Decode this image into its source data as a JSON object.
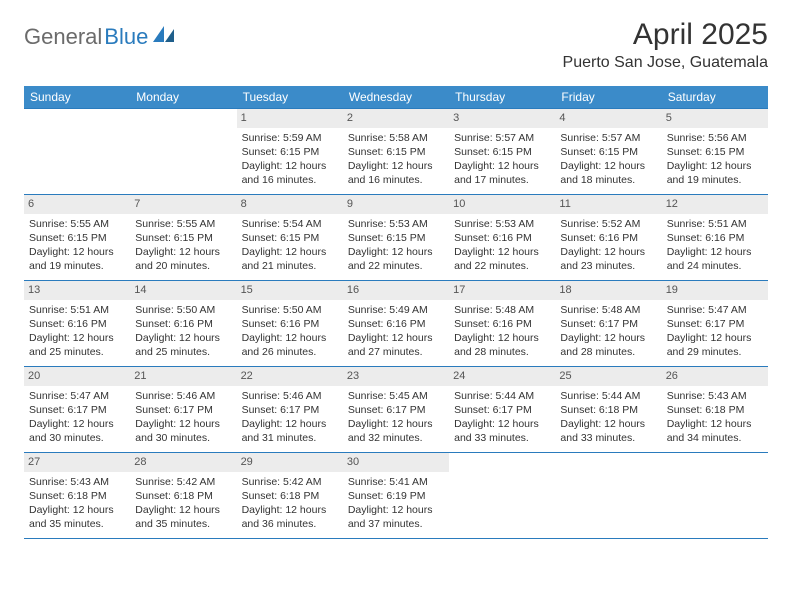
{
  "logo": {
    "part1": "General",
    "part2": "Blue"
  },
  "title": "April 2025",
  "location": "Puerto San Jose, Guatemala",
  "colors": {
    "header_bg": "#3b8bc9",
    "border": "#2a7bbd",
    "daynum_bg": "#ececec",
    "text": "#333333",
    "logo_gray": "#6b6b6b",
    "logo_blue": "#2a7bbd",
    "page_bg": "#ffffff"
  },
  "weekdays": [
    "Sunday",
    "Monday",
    "Tuesday",
    "Wednesday",
    "Thursday",
    "Friday",
    "Saturday"
  ],
  "weeks": [
    [
      null,
      null,
      {
        "n": "1",
        "sr": "Sunrise: 5:59 AM",
        "ss": "Sunset: 6:15 PM",
        "d1": "Daylight: 12 hours",
        "d2": "and 16 minutes."
      },
      {
        "n": "2",
        "sr": "Sunrise: 5:58 AM",
        "ss": "Sunset: 6:15 PM",
        "d1": "Daylight: 12 hours",
        "d2": "and 16 minutes."
      },
      {
        "n": "3",
        "sr": "Sunrise: 5:57 AM",
        "ss": "Sunset: 6:15 PM",
        "d1": "Daylight: 12 hours",
        "d2": "and 17 minutes."
      },
      {
        "n": "4",
        "sr": "Sunrise: 5:57 AM",
        "ss": "Sunset: 6:15 PM",
        "d1": "Daylight: 12 hours",
        "d2": "and 18 minutes."
      },
      {
        "n": "5",
        "sr": "Sunrise: 5:56 AM",
        "ss": "Sunset: 6:15 PM",
        "d1": "Daylight: 12 hours",
        "d2": "and 19 minutes."
      }
    ],
    [
      {
        "n": "6",
        "sr": "Sunrise: 5:55 AM",
        "ss": "Sunset: 6:15 PM",
        "d1": "Daylight: 12 hours",
        "d2": "and 19 minutes."
      },
      {
        "n": "7",
        "sr": "Sunrise: 5:55 AM",
        "ss": "Sunset: 6:15 PM",
        "d1": "Daylight: 12 hours",
        "d2": "and 20 minutes."
      },
      {
        "n": "8",
        "sr": "Sunrise: 5:54 AM",
        "ss": "Sunset: 6:15 PM",
        "d1": "Daylight: 12 hours",
        "d2": "and 21 minutes."
      },
      {
        "n": "9",
        "sr": "Sunrise: 5:53 AM",
        "ss": "Sunset: 6:15 PM",
        "d1": "Daylight: 12 hours",
        "d2": "and 22 minutes."
      },
      {
        "n": "10",
        "sr": "Sunrise: 5:53 AM",
        "ss": "Sunset: 6:16 PM",
        "d1": "Daylight: 12 hours",
        "d2": "and 22 minutes."
      },
      {
        "n": "11",
        "sr": "Sunrise: 5:52 AM",
        "ss": "Sunset: 6:16 PM",
        "d1": "Daylight: 12 hours",
        "d2": "and 23 minutes."
      },
      {
        "n": "12",
        "sr": "Sunrise: 5:51 AM",
        "ss": "Sunset: 6:16 PM",
        "d1": "Daylight: 12 hours",
        "d2": "and 24 minutes."
      }
    ],
    [
      {
        "n": "13",
        "sr": "Sunrise: 5:51 AM",
        "ss": "Sunset: 6:16 PM",
        "d1": "Daylight: 12 hours",
        "d2": "and 25 minutes."
      },
      {
        "n": "14",
        "sr": "Sunrise: 5:50 AM",
        "ss": "Sunset: 6:16 PM",
        "d1": "Daylight: 12 hours",
        "d2": "and 25 minutes."
      },
      {
        "n": "15",
        "sr": "Sunrise: 5:50 AM",
        "ss": "Sunset: 6:16 PM",
        "d1": "Daylight: 12 hours",
        "d2": "and 26 minutes."
      },
      {
        "n": "16",
        "sr": "Sunrise: 5:49 AM",
        "ss": "Sunset: 6:16 PM",
        "d1": "Daylight: 12 hours",
        "d2": "and 27 minutes."
      },
      {
        "n": "17",
        "sr": "Sunrise: 5:48 AM",
        "ss": "Sunset: 6:16 PM",
        "d1": "Daylight: 12 hours",
        "d2": "and 28 minutes."
      },
      {
        "n": "18",
        "sr": "Sunrise: 5:48 AM",
        "ss": "Sunset: 6:17 PM",
        "d1": "Daylight: 12 hours",
        "d2": "and 28 minutes."
      },
      {
        "n": "19",
        "sr": "Sunrise: 5:47 AM",
        "ss": "Sunset: 6:17 PM",
        "d1": "Daylight: 12 hours",
        "d2": "and 29 minutes."
      }
    ],
    [
      {
        "n": "20",
        "sr": "Sunrise: 5:47 AM",
        "ss": "Sunset: 6:17 PM",
        "d1": "Daylight: 12 hours",
        "d2": "and 30 minutes."
      },
      {
        "n": "21",
        "sr": "Sunrise: 5:46 AM",
        "ss": "Sunset: 6:17 PM",
        "d1": "Daylight: 12 hours",
        "d2": "and 30 minutes."
      },
      {
        "n": "22",
        "sr": "Sunrise: 5:46 AM",
        "ss": "Sunset: 6:17 PM",
        "d1": "Daylight: 12 hours",
        "d2": "and 31 minutes."
      },
      {
        "n": "23",
        "sr": "Sunrise: 5:45 AM",
        "ss": "Sunset: 6:17 PM",
        "d1": "Daylight: 12 hours",
        "d2": "and 32 minutes."
      },
      {
        "n": "24",
        "sr": "Sunrise: 5:44 AM",
        "ss": "Sunset: 6:17 PM",
        "d1": "Daylight: 12 hours",
        "d2": "and 33 minutes."
      },
      {
        "n": "25",
        "sr": "Sunrise: 5:44 AM",
        "ss": "Sunset: 6:18 PM",
        "d1": "Daylight: 12 hours",
        "d2": "and 33 minutes."
      },
      {
        "n": "26",
        "sr": "Sunrise: 5:43 AM",
        "ss": "Sunset: 6:18 PM",
        "d1": "Daylight: 12 hours",
        "d2": "and 34 minutes."
      }
    ],
    [
      {
        "n": "27",
        "sr": "Sunrise: 5:43 AM",
        "ss": "Sunset: 6:18 PM",
        "d1": "Daylight: 12 hours",
        "d2": "and 35 minutes."
      },
      {
        "n": "28",
        "sr": "Sunrise: 5:42 AM",
        "ss": "Sunset: 6:18 PM",
        "d1": "Daylight: 12 hours",
        "d2": "and 35 minutes."
      },
      {
        "n": "29",
        "sr": "Sunrise: 5:42 AM",
        "ss": "Sunset: 6:18 PM",
        "d1": "Daylight: 12 hours",
        "d2": "and 36 minutes."
      },
      {
        "n": "30",
        "sr": "Sunrise: 5:41 AM",
        "ss": "Sunset: 6:19 PM",
        "d1": "Daylight: 12 hours",
        "d2": "and 37 minutes."
      },
      null,
      null,
      null
    ]
  ]
}
